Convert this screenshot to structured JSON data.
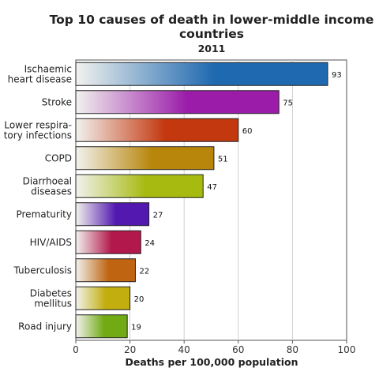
{
  "chart_data": {
    "type": "bar",
    "orientation": "horizontal",
    "title": "Top 10 causes of death in lower-middle income countries",
    "subtitle": "2011",
    "xlabel": "Deaths per 100,000 population",
    "ylabel": "",
    "xlim": [
      0,
      100
    ],
    "xticks": [
      0,
      20,
      40,
      60,
      80,
      100
    ],
    "grid": true,
    "categories": [
      "Ischaemic heart disease",
      "Stroke",
      "Lower respiratory infections",
      "COPD",
      "Diarrhoeal diseases",
      "Prematurity",
      "HIV/AIDS",
      "Tuberculosis",
      "Diabetes mellitus",
      "Road injury"
    ],
    "category_label_lines": [
      [
        "Ischaemic",
        "heart disease"
      ],
      [
        "Stroke"
      ],
      [
        "Lower respira-",
        "tory infections"
      ],
      [
        "COPD"
      ],
      [
        "Diarrhoeal",
        "diseases"
      ],
      [
        "Prematurity"
      ],
      [
        "HIV/AIDS"
      ],
      [
        "Tuberculosis"
      ],
      [
        "Diabetes",
        "mellitus"
      ],
      [
        "Road injury"
      ]
    ],
    "values": [
      93,
      75,
      60,
      51,
      47,
      27,
      24,
      22,
      20,
      19
    ],
    "colors": [
      "#1f69b0",
      "#9a1ca9",
      "#c3380f",
      "#b8860b",
      "#a7ba10",
      "#5218b0",
      "#b3184c",
      "#bf6410",
      "#c2ae0e",
      "#72aa14"
    ]
  }
}
